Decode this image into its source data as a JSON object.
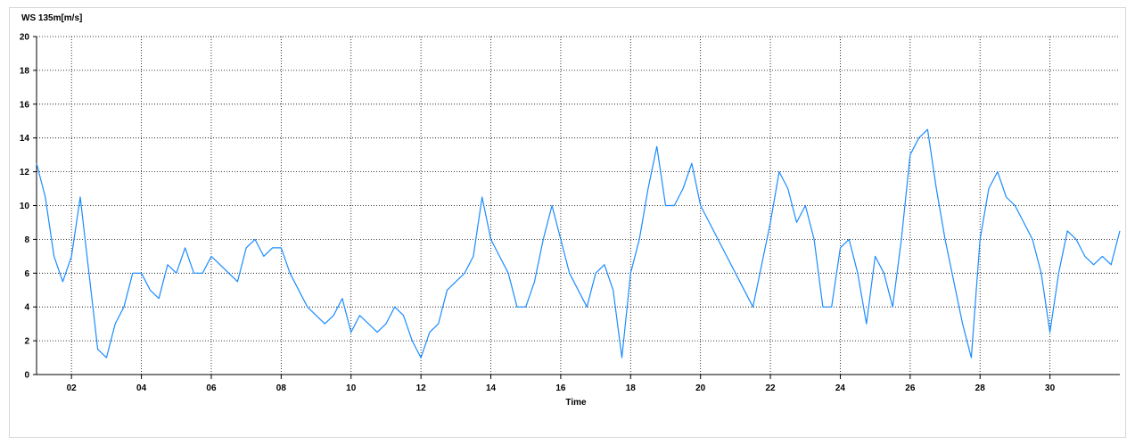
{
  "chart_data": {
    "type": "line",
    "title": "WS 135m[m/s]",
    "x_label": "Time",
    "x": [
      1,
      1.25,
      1.5,
      1.75,
      2,
      2.25,
      2.5,
      2.75,
      3,
      3.25,
      3.5,
      3.75,
      4,
      4.25,
      4.5,
      4.75,
      5,
      5.25,
      5.5,
      5.75,
      6,
      6.25,
      6.5,
      6.75,
      7,
      7.25,
      7.5,
      7.75,
      8,
      8.25,
      8.5,
      8.75,
      9,
      9.25,
      9.5,
      9.75,
      10,
      10.25,
      10.5,
      10.75,
      11,
      11.25,
      11.5,
      11.75,
      12,
      12.25,
      12.5,
      12.75,
      13,
      13.25,
      13.5,
      13.75,
      14,
      14.25,
      14.5,
      14.75,
      15,
      15.25,
      15.5,
      15.75,
      16,
      16.25,
      16.5,
      16.75,
      17,
      17.25,
      17.5,
      17.75,
      18,
      18.25,
      18.5,
      18.75,
      19,
      19.25,
      19.5,
      19.75,
      20,
      20.25,
      20.5,
      20.75,
      21,
      21.25,
      21.5,
      21.75,
      22,
      22.25,
      22.5,
      22.75,
      23,
      23.25,
      23.5,
      23.75,
      24,
      24.25,
      24.5,
      24.75,
      25,
      25.25,
      25.5,
      25.75,
      26,
      26.25,
      26.5,
      26.75,
      27,
      27.25,
      27.5,
      27.75,
      28,
      28.25,
      28.5,
      28.75,
      29,
      29.25,
      29.5,
      29.75,
      30,
      30.25,
      30.5,
      30.75,
      31,
      31.25,
      31.5,
      31.75,
      32
    ],
    "series": [
      {
        "name": "WS 135m",
        "color": "#1a8cff",
        "values": [
          12.5,
          10.5,
          7,
          5.5,
          7,
          10.5,
          6,
          1.5,
          1,
          3,
          4,
          6,
          6,
          5,
          4.5,
          6.5,
          6,
          7.5,
          6,
          6,
          7,
          6.5,
          6,
          5.5,
          7.5,
          8,
          7,
          7.5,
          7.5,
          6,
          5,
          4,
          3.5,
          3,
          3.5,
          4.5,
          2.5,
          3.5,
          3,
          2.5,
          3,
          4,
          3.5,
          2,
          1,
          2.5,
          3,
          5,
          5.5,
          6,
          7,
          10.5,
          8,
          7,
          6,
          4,
          4,
          5.5,
          8,
          10,
          8,
          6,
          5,
          4,
          6,
          6.5,
          5,
          1,
          6,
          8,
          11,
          13.5,
          10,
          10,
          11,
          12.5,
          10,
          9,
          8,
          7,
          6,
          5,
          4,
          6.5,
          9,
          12,
          11,
          9,
          10,
          8,
          4,
          4,
          7.5,
          8,
          6,
          3,
          7,
          6,
          4,
          8,
          13,
          14,
          14.5,
          11,
          8,
          5.5,
          3,
          1,
          8,
          11,
          12,
          10.5,
          10,
          9,
          8,
          6,
          2.5,
          6,
          8.5,
          8,
          7,
          6.5,
          7,
          6.5,
          8.5
        ]
      }
    ],
    "xlim": [
      1,
      32
    ],
    "xticks": [
      {
        "value": 2,
        "label": "02"
      },
      {
        "value": 4,
        "label": "04"
      },
      {
        "value": 6,
        "label": "06"
      },
      {
        "value": 8,
        "label": "08"
      },
      {
        "value": 10,
        "label": "10"
      },
      {
        "value": 12,
        "label": "12"
      },
      {
        "value": 14,
        "label": "14"
      },
      {
        "value": 16,
        "label": "16"
      },
      {
        "value": 18,
        "label": "18"
      },
      {
        "value": 20,
        "label": "20"
      },
      {
        "value": 22,
        "label": "22"
      },
      {
        "value": 24,
        "label": "24"
      },
      {
        "value": 26,
        "label": "26"
      },
      {
        "value": 28,
        "label": "28"
      },
      {
        "value": 30,
        "label": "30"
      }
    ],
    "ylim": [
      0,
      20
    ],
    "yticks": [
      0,
      2,
      4,
      6,
      8,
      10,
      12,
      14,
      16,
      18,
      20
    ],
    "grid": true
  }
}
